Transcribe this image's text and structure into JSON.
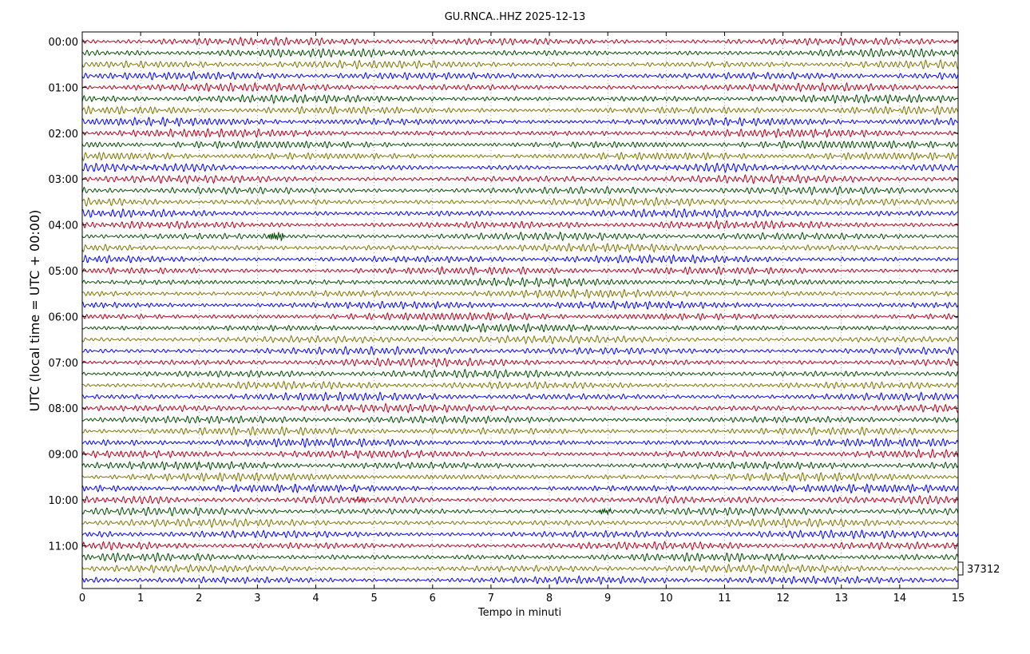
{
  "chart_data": {
    "type": "line",
    "subtype": "helicorder",
    "title": "GU.RNCA..HHZ 2025-12-13",
    "xlabel": "Tempo in minuti",
    "ylabel": "UTC (local time = UTC + 00:00)",
    "xlim": [
      0,
      15
    ],
    "x_ticks": [
      0,
      1,
      2,
      3,
      4,
      5,
      6,
      7,
      8,
      9,
      10,
      11,
      12,
      13,
      14,
      15
    ],
    "y_tick_labels": [
      "00:00",
      "01:00",
      "02:00",
      "03:00",
      "04:00",
      "05:00",
      "06:00",
      "07:00",
      "08:00",
      "09:00",
      "10:00",
      "11:00"
    ],
    "line_minutes": 15,
    "lines_per_hour": 4,
    "line_count": 48,
    "trace_colors": [
      "#b2001a",
      "#004c00",
      "#7f7200",
      "#0000ff"
    ],
    "x_grid": "dotted",
    "scale_label": "37312",
    "events": [
      {
        "line": 17,
        "minute_start": 3.2,
        "minute_end": 3.45,
        "amplitude": "high"
      },
      {
        "line": 40,
        "minute_start": 4.65,
        "minute_end": 4.85,
        "amplitude": "medium"
      },
      {
        "line": 41,
        "minute_start": 8.85,
        "minute_end": 9.05,
        "amplitude": "medium"
      }
    ]
  }
}
